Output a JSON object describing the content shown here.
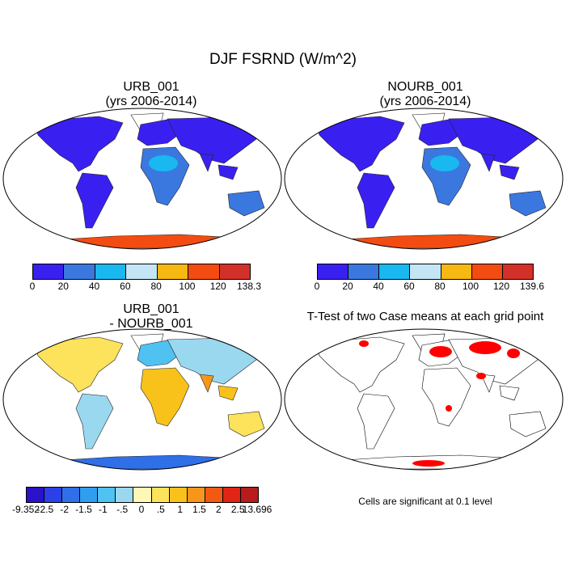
{
  "main_title": "DJF FSRND (W/m^2)",
  "panels": [
    {
      "id": "urb",
      "title_line1": "URB_001",
      "title_line2": "(yrs 2006-2014)",
      "colors": [
        "#3a20f0",
        "#3a78e0",
        "#19b8f0",
        "#c4e6f4",
        "#f7b811",
        "#f24c12",
        "#d2312a"
      ],
      "ticks": [
        "0",
        "20",
        "40",
        "60",
        "80",
        "100",
        "120",
        "138.3"
      ]
    },
    {
      "id": "nourb",
      "title_line1": "NOURB_001",
      "title_line2": "(yrs 2006-2014)",
      "colors": [
        "#3a20f0",
        "#3a78e0",
        "#19b8f0",
        "#c4e6f4",
        "#f7b811",
        "#f24c12",
        "#d2312a"
      ],
      "ticks": [
        "0",
        "20",
        "40",
        "60",
        "80",
        "100",
        "120",
        "139.6"
      ]
    },
    {
      "id": "diff",
      "title_line1": "URB_001",
      "title_line2": "- NOURB_001",
      "colors": [
        "#2a12c8",
        "#2b40e6",
        "#2f6fe8",
        "#2e9ef0",
        "#4fc2f2",
        "#9ad8f0",
        "#fff8b4",
        "#fde25c",
        "#f9c21b",
        "#f7961a",
        "#f25a12",
        "#e02415",
        "#b71b1b"
      ],
      "ticks": [
        "-9.352",
        "-2.5",
        "-2",
        "-1.5",
        "-1",
        "-.5",
        "0",
        ".5",
        "1",
        "1.5",
        "2",
        "2.5",
        "13.696"
      ]
    },
    {
      "id": "ttest",
      "title_line1": "T-Test of two Case means at each grid point",
      "note": "Cells are significant at 0.1 level"
    }
  ],
  "map_colors": {
    "ocean": "#ffffff",
    "land_low": "#3a20f0",
    "land_mid": "#3a78e0",
    "land_high": "#19b8f0",
    "ice": "#f24c12",
    "sig": "#ff0000"
  }
}
